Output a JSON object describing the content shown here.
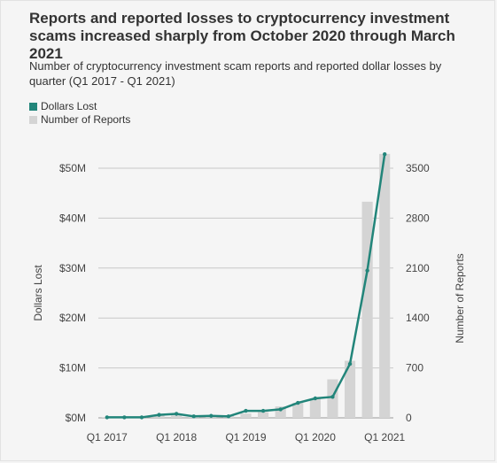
{
  "title": "Reports and reported losses to cryptocurrency investment scams increased sharply from October 2020 through March 2021",
  "subtitle": "Number of cryptocurrency investment scam reports and reported dollar losses by quarter (Q1 2017 - Q1 2021)",
  "legend": {
    "dollars": "Dollars Lost",
    "reports": "Number of Reports"
  },
  "colors": {
    "line": "#22857a",
    "bars": "#d4d4d4"
  },
  "chart_data": {
    "type": "bar+line",
    "title": "Reports and reported losses to cryptocurrency investment scams increased sharply from October 2020 through March 2021",
    "subtitle": "Number of cryptocurrency investment scam reports and reported dollar losses by quarter (Q1 2017 - Q1 2021)",
    "categories": [
      "Q1 2017",
      "Q2 2017",
      "Q3 2017",
      "Q4 2017",
      "Q1 2018",
      "Q2 2018",
      "Q3 2018",
      "Q4 2018",
      "Q1 2019",
      "Q2 2019",
      "Q3 2019",
      "Q4 2019",
      "Q1 2020",
      "Q2 2020",
      "Q3 2020",
      "Q4 2020",
      "Q1 2021"
    ],
    "x_tick_labels": [
      "Q1 2017",
      "Q1 2018",
      "Q1 2019",
      "Q1 2020",
      "Q1 2021"
    ],
    "series": [
      {
        "name": "Number of Reports",
        "kind": "bar",
        "axis": "right",
        "values": [
          10,
          10,
          15,
          45,
          35,
          25,
          25,
          30,
          60,
          80,
          160,
          210,
          270,
          540,
          800,
          3030,
          3700
        ]
      },
      {
        "name": "Dollars Lost",
        "kind": "line",
        "axis": "left",
        "values": [
          0.1,
          0.1,
          0.1,
          0.6,
          0.8,
          0.3,
          0.4,
          0.3,
          1.4,
          1.4,
          1.7,
          3.0,
          3.9,
          4.2,
          10.8,
          29.5,
          52.8
        ]
      }
    ],
    "y_left": {
      "label": "Dollars Lost",
      "ticks": [
        "$0M",
        "$10M",
        "$20M",
        "$30M",
        "$40M",
        "$50M"
      ],
      "range": [
        0,
        50
      ]
    },
    "y_right": {
      "label": "Number of Reports",
      "ticks": [
        "0",
        "700",
        "1400",
        "2100",
        "2800",
        "3500"
      ],
      "range": [
        0,
        3500
      ]
    },
    "legend_position": "top-left",
    "grid": "horizontal"
  }
}
